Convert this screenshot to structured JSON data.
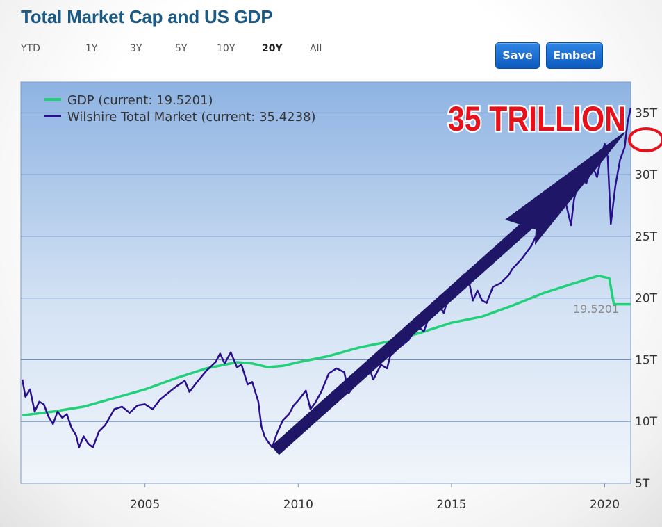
{
  "page": {
    "title": "Total Market Cap and US GDP"
  },
  "range_tabs": [
    {
      "label": "YTD",
      "active": false
    },
    {
      "label": "1Y",
      "active": false
    },
    {
      "label": "3Y",
      "active": false
    },
    {
      "label": "5Y",
      "active": false
    },
    {
      "label": "10Y",
      "active": false
    },
    {
      "label": "20Y",
      "active": true
    },
    {
      "label": "All",
      "active": false
    }
  ],
  "toolbar": {
    "save_label": "Save",
    "embed_label": "Embed"
  },
  "annotation": {
    "headline": "35 TRILLION",
    "headline_color": "#e8101a",
    "arrow_color": "#1f1668",
    "circle_color": "#e8101a"
  },
  "chart_data": {
    "type": "line",
    "title": "Total Market Cap and US GDP",
    "xlabel": "",
    "ylabel": "",
    "xlim": [
      2000.95,
      2020.85
    ],
    "ylim": [
      5,
      37.5
    ],
    "x_ticks": [
      {
        "value": 2005,
        "label": "2005"
      },
      {
        "value": 2010,
        "label": "2010"
      },
      {
        "value": 2015,
        "label": "2015"
      },
      {
        "value": 2020,
        "label": "2020"
      }
    ],
    "y_ticks": [
      {
        "value": 5,
        "label": "5T"
      },
      {
        "value": 10,
        "label": "10T"
      },
      {
        "value": 15,
        "label": "15T"
      },
      {
        "value": 20,
        "label": "20T"
      },
      {
        "value": 25,
        "label": "25T"
      },
      {
        "value": 30,
        "label": "30T"
      },
      {
        "value": 35,
        "label": "35T"
      }
    ],
    "grid": "horizontal",
    "legend_position": "top-left",
    "last_value_label": "19.5201",
    "series": [
      {
        "name": "GDP (current: 19.5201)",
        "color": "#22d07a",
        "points": [
          [
            2001.0,
            10.5
          ],
          [
            2002.0,
            10.8
          ],
          [
            2003.0,
            11.2
          ],
          [
            2004.0,
            11.9
          ],
          [
            2005.0,
            12.6
          ],
          [
            2006.0,
            13.5
          ],
          [
            2007.0,
            14.3
          ],
          [
            2008.0,
            14.8
          ],
          [
            2008.5,
            14.7
          ],
          [
            2009.0,
            14.4
          ],
          [
            2009.5,
            14.5
          ],
          [
            2010.0,
            14.8
          ],
          [
            2011.0,
            15.3
          ],
          [
            2012.0,
            16.0
          ],
          [
            2013.0,
            16.5
          ],
          [
            2014.0,
            17.2
          ],
          [
            2015.0,
            18.0
          ],
          [
            2016.0,
            18.5
          ],
          [
            2017.0,
            19.4
          ],
          [
            2018.0,
            20.4
          ],
          [
            2019.0,
            21.2
          ],
          [
            2019.8,
            21.8
          ],
          [
            2020.15,
            21.6
          ],
          [
            2020.3,
            19.5
          ],
          [
            2020.85,
            19.5
          ]
        ]
      },
      {
        "name": "Wilshire Total Market (current: 35.4238)",
        "color": "#2a0f8c",
        "points": [
          [
            2001.0,
            13.4
          ],
          [
            2001.1,
            12.0
          ],
          [
            2001.25,
            12.6
          ],
          [
            2001.4,
            10.8
          ],
          [
            2001.55,
            11.6
          ],
          [
            2001.7,
            11.4
          ],
          [
            2001.85,
            10.4
          ],
          [
            2002.0,
            9.8
          ],
          [
            2002.15,
            10.8
          ],
          [
            2002.3,
            10.3
          ],
          [
            2002.45,
            10.6
          ],
          [
            2002.6,
            9.5
          ],
          [
            2002.75,
            8.9
          ],
          [
            2002.85,
            7.9
          ],
          [
            2003.0,
            8.8
          ],
          [
            2003.15,
            8.2
          ],
          [
            2003.3,
            7.9
          ],
          [
            2003.5,
            9.2
          ],
          [
            2003.7,
            9.7
          ],
          [
            2004.0,
            11.0
          ],
          [
            2004.25,
            11.2
          ],
          [
            2004.5,
            10.7
          ],
          [
            2004.75,
            11.3
          ],
          [
            2005.0,
            11.4
          ],
          [
            2005.25,
            11.0
          ],
          [
            2005.5,
            11.8
          ],
          [
            2005.75,
            12.3
          ],
          [
            2006.0,
            12.8
          ],
          [
            2006.3,
            13.3
          ],
          [
            2006.45,
            12.4
          ],
          [
            2006.7,
            13.2
          ],
          [
            2007.0,
            14.1
          ],
          [
            2007.3,
            14.8
          ],
          [
            2007.45,
            15.5
          ],
          [
            2007.6,
            14.7
          ],
          [
            2007.8,
            15.6
          ],
          [
            2008.0,
            14.4
          ],
          [
            2008.15,
            14.6
          ],
          [
            2008.35,
            13.0
          ],
          [
            2008.5,
            13.2
          ],
          [
            2008.7,
            11.6
          ],
          [
            2008.8,
            9.6
          ],
          [
            2008.9,
            8.8
          ],
          [
            2009.0,
            8.4
          ],
          [
            2009.15,
            7.9
          ],
          [
            2009.3,
            9.0
          ],
          [
            2009.5,
            10.1
          ],
          [
            2009.7,
            10.6
          ],
          [
            2009.85,
            11.3
          ],
          [
            2010.0,
            11.7
          ],
          [
            2010.25,
            12.5
          ],
          [
            2010.4,
            11.0
          ],
          [
            2010.55,
            11.5
          ],
          [
            2010.75,
            12.4
          ],
          [
            2011.0,
            13.9
          ],
          [
            2011.25,
            14.3
          ],
          [
            2011.5,
            14.0
          ],
          [
            2011.65,
            12.3
          ],
          [
            2011.8,
            12.8
          ],
          [
            2012.0,
            14.2
          ],
          [
            2012.25,
            14.8
          ],
          [
            2012.45,
            13.4
          ],
          [
            2012.7,
            14.6
          ],
          [
            2012.9,
            14.3
          ],
          [
            2013.0,
            15.3
          ],
          [
            2013.3,
            16.0
          ],
          [
            2013.6,
            16.6
          ],
          [
            2013.9,
            17.7
          ],
          [
            2014.1,
            17.3
          ],
          [
            2014.3,
            18.7
          ],
          [
            2014.6,
            19.4
          ],
          [
            2014.75,
            18.8
          ],
          [
            2014.95,
            20.5
          ],
          [
            2015.2,
            21.3
          ],
          [
            2015.4,
            21.9
          ],
          [
            2015.55,
            21.6
          ],
          [
            2015.7,
            19.8
          ],
          [
            2015.85,
            20.6
          ],
          [
            2016.0,
            19.8
          ],
          [
            2016.15,
            19.6
          ],
          [
            2016.35,
            20.9
          ],
          [
            2016.6,
            21.2
          ],
          [
            2016.85,
            21.8
          ],
          [
            2017.0,
            22.4
          ],
          [
            2017.3,
            23.2
          ],
          [
            2017.6,
            24.2
          ],
          [
            2017.9,
            25.7
          ],
          [
            2018.05,
            26.3
          ],
          [
            2018.2,
            27.5
          ],
          [
            2018.4,
            27.0
          ],
          [
            2018.6,
            28.9
          ],
          [
            2018.75,
            27.5
          ],
          [
            2018.9,
            25.9
          ],
          [
            2019.0,
            28.0
          ],
          [
            2019.2,
            29.9
          ],
          [
            2019.4,
            29.3
          ],
          [
            2019.6,
            30.7
          ],
          [
            2019.75,
            29.8
          ],
          [
            2019.9,
            31.6
          ],
          [
            2020.0,
            32.5
          ],
          [
            2020.1,
            31.4
          ],
          [
            2020.2,
            26.0
          ],
          [
            2020.35,
            29.1
          ],
          [
            2020.5,
            31.2
          ],
          [
            2020.65,
            32.2
          ],
          [
            2020.75,
            34.3
          ],
          [
            2020.85,
            35.4
          ]
        ]
      }
    ]
  }
}
